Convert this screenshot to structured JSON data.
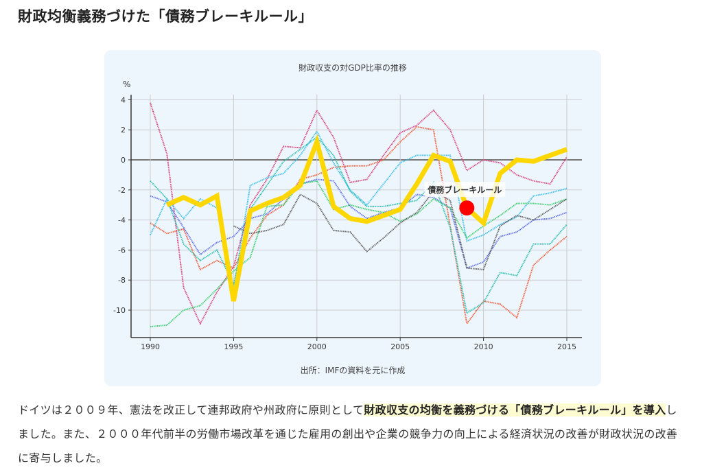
{
  "heading": "財政均衡義務づけた「債務ブレーキルール」",
  "chart_data": {
    "type": "line",
    "title": "財政収支の対GDP比率の推移",
    "ylabel": "%",
    "xlabel": "",
    "source": "出所：IMFの資料を元に作成",
    "ylim": [
      -11.8,
      4.4
    ],
    "xlim": [
      1989,
      2016
    ],
    "yticks": [
      4,
      2,
      0,
      -2,
      -4,
      -6,
      -8,
      -10
    ],
    "xticks": [
      1990,
      1995,
      2000,
      2005,
      2010,
      2015
    ],
    "grid": true,
    "legend": "none",
    "highlight": {
      "label": "債務ブレーキルール",
      "x": 2009,
      "y": -3.2,
      "color": "#ff0000"
    },
    "series": [
      {
        "color": "#d63a78",
        "start": 1990,
        "values": [
          3.8,
          0.4,
          -8.5,
          -10.9,
          -8.8,
          -7.1,
          -3.0,
          -1.3,
          0.9,
          0.8,
          3.3,
          1.5,
          -1.5,
          -1.3,
          0.3,
          1.8,
          2.3,
          3.3,
          2.0,
          -0.7,
          0.0,
          -0.2,
          -1.0,
          -1.4,
          -1.6,
          0.2
        ]
      },
      {
        "color": "#ee5533",
        "start": 1990,
        "values": [
          -4.2,
          -4.9,
          -4.6,
          -7.3,
          -6.7,
          -7.2,
          -5.2,
          -3.7,
          -3.0,
          -1.3,
          -1.0,
          -0.5,
          -0.4,
          -0.4,
          0.0,
          1.2,
          2.2,
          2.0,
          -4.4,
          -10.9,
          -9.4,
          -9.6,
          -10.5,
          -7.0,
          -6.0,
          -5.1
        ]
      },
      {
        "color": "#5566ee",
        "start": 1990,
        "values": [
          -2.4,
          -2.8,
          -4.5,
          -6.3,
          -5.5,
          -5.1,
          -3.9,
          -3.6,
          -2.6,
          -1.6,
          -1.3,
          -1.4,
          -3.1,
          -3.9,
          -3.5,
          -3.2,
          -2.3,
          -2.5,
          -3.2,
          -7.2,
          -6.8,
          -5.1,
          -4.8,
          -4.0,
          -3.9,
          -3.5
        ]
      },
      {
        "color": "#33bbee",
        "start": 1990,
        "values": [
          -5.0,
          -2.6,
          -3.9,
          -2.6,
          -3.2,
          -8.6,
          -1.7,
          -1.2,
          -0.9,
          0.3,
          1.9,
          -0.2,
          -2.0,
          -3.0,
          -1.6,
          -0.2,
          0.3,
          0.3,
          0.3,
          -5.4,
          -5.0,
          -4.3,
          -3.8,
          -2.4,
          -2.2,
          -1.9
        ]
      },
      {
        "color": "#22bbaa",
        "start": 1990,
        "values": [
          -1.4,
          -2.6,
          -5.6,
          -6.7,
          -6.0,
          -8.3,
          -3.3,
          -1.7,
          -0.1,
          0.7,
          1.5,
          0.3,
          -2.1,
          -3.1,
          -3.1,
          -2.9,
          -2.7,
          -1.5,
          -4.5,
          -10.2,
          -9.5,
          -7.5,
          -7.7,
          -5.6,
          -5.6,
          -4.3
        ]
      },
      {
        "color": "#33cc66",
        "start": 1990,
        "values": [
          -11.1,
          -11.0,
          -10.0,
          -9.7,
          -8.6,
          -7.4,
          -6.5,
          -3.1,
          -3.0,
          -1.6,
          -1.4,
          -3.3,
          -3.0,
          -3.3,
          -3.5,
          -4.1,
          -3.6,
          -2.6,
          -3.2,
          -5.2,
          -4.4,
          -3.7,
          -2.9,
          -2.9,
          -3.0,
          -2.6
        ]
      },
      {
        "color": "#555555",
        "start": 1995,
        "values": [
          -4.4,
          -4.9,
          -4.7,
          -4.3,
          -2.3,
          -2.9,
          -4.7,
          -4.8,
          -6.1,
          -5.2,
          -4.2,
          -3.5,
          -2.1,
          -2.7,
          -7.2,
          -7.3,
          -4.4,
          -3.7,
          -4.0,
          -3.3,
          -2.6
        ]
      },
      {
        "color": "#ffd700",
        "start": 1991,
        "thick": true,
        "values": [
          -3.0,
          -2.5,
          -3.0,
          -2.4,
          -9.4,
          -3.4,
          -2.9,
          -2.5,
          -1.7,
          1.2,
          -3.1,
          -3.9,
          -4.1,
          -3.7,
          -3.3,
          -1.6,
          0.3,
          -0.1,
          -3.2,
          -4.2,
          -0.9,
          0.0,
          -0.1,
          0.3,
          0.7
        ]
      }
    ]
  },
  "paragraph": {
    "p1": "ドイツは２００９年、憲法を改正して連邦政府や州政府に原則として",
    "highlight": "財政収支の均衡を義務づける「債務ブレーキルール」を導入",
    "p2": "しました。また、２０００年代前半の労働市場改革を通じた雇用の創出や企業の競争力の向上による経済状況の改善が財政状況の改善に寄与しました。"
  }
}
